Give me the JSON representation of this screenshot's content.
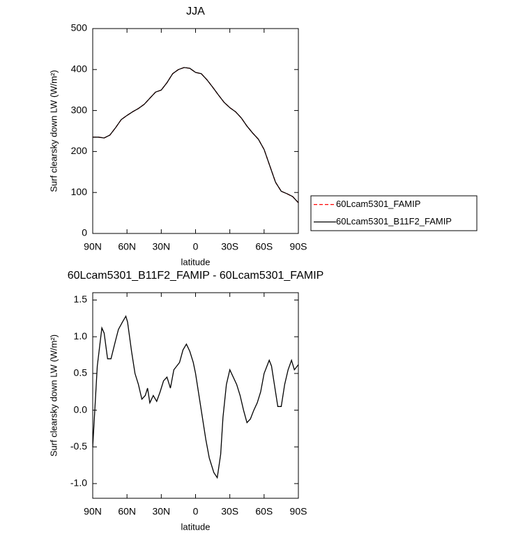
{
  "chart_data": [
    {
      "type": "line",
      "title": "JJA",
      "xlabel": "latitude",
      "ylabel": "Surf clearsky down LW (W/m²)",
      "x": [
        90,
        85,
        80,
        75,
        70,
        65,
        60,
        55,
        50,
        45,
        40,
        35,
        30,
        25,
        20,
        15,
        10,
        5,
        0,
        -5,
        -10,
        -15,
        -20,
        -25,
        -30,
        -35,
        -40,
        -45,
        -50,
        -55,
        -60,
        -65,
        -70,
        -75,
        -80,
        -85,
        -90
      ],
      "series": [
        {
          "name": "60Lcam5301_FAMIP",
          "color": "#ff0000",
          "dash": true,
          "values": [
            235,
            235,
            233,
            240,
            258,
            278,
            288,
            297,
            305,
            315,
            330,
            345,
            350,
            368,
            390,
            400,
            405,
            403,
            393,
            390,
            375,
            357,
            338,
            320,
            307,
            297,
            282,
            262,
            245,
            230,
            205,
            165,
            125,
            103,
            97,
            90,
            75
          ]
        },
        {
          "name": "60Lcam5301_B11F2_FAMIP",
          "color": "#000000",
          "dash": false,
          "values": [
            235,
            235,
            233,
            240,
            258,
            278,
            288,
            297,
            305,
            315,
            330,
            345,
            350,
            368,
            390,
            400,
            405,
            403,
            393,
            390,
            375,
            357,
            338,
            320,
            307,
            297,
            282,
            262,
            245,
            230,
            205,
            165,
            125,
            103,
            97,
            90,
            75
          ]
        }
      ],
      "xlim": [
        90,
        -90
      ],
      "xticks": [
        {
          "value": 90,
          "label": "90N"
        },
        {
          "value": 60,
          "label": "60N"
        },
        {
          "value": 30,
          "label": "30N"
        },
        0,
        {
          "value": -30,
          "label": "30S"
        },
        {
          "value": -60,
          "label": "60S"
        },
        {
          "value": -90,
          "label": "90S"
        }
      ],
      "ylim": [
        0,
        500
      ],
      "yticks": [
        0,
        100,
        200,
        300,
        400,
        500
      ]
    },
    {
      "type": "line",
      "title": "60Lcam5301_B11F2_FAMIP - 60Lcam5301_FAMIP",
      "xlabel": "latitude",
      "ylabel": "Surf clearsky down LW (W/m²)",
      "x": [
        90,
        86,
        82,
        80,
        77,
        74,
        70,
        67.5,
        64,
        61,
        59.5,
        56,
        53,
        50,
        47,
        44,
        42,
        40,
        37,
        34,
        31,
        28,
        25,
        22,
        19,
        14,
        11,
        8,
        5,
        2,
        0,
        -3,
        -6,
        -9,
        -12,
        -16,
        -19,
        -22,
        -24,
        -27,
        -30,
        -33,
        -36,
        -39,
        -42,
        -45,
        -48,
        -51,
        -54,
        -57,
        -60,
        -64.5,
        -66.5,
        -69,
        -72,
        -75,
        -78,
        -81,
        -84,
        -86.5,
        -90
      ],
      "series": [
        {
          "color": "#000000",
          "dash": false,
          "values": [
            -0.5,
            0.6,
            1.12,
            1.05,
            0.7,
            0.7,
            0.95,
            1.1,
            1.2,
            1.28,
            1.2,
            0.8,
            0.5,
            0.35,
            0.15,
            0.2,
            0.3,
            0.1,
            0.2,
            0.12,
            0.25,
            0.4,
            0.45,
            0.3,
            0.55,
            0.65,
            0.82,
            0.9,
            0.8,
            0.65,
            0.5,
            0.2,
            -0.1,
            -0.4,
            -0.65,
            -0.85,
            -0.92,
            -0.6,
            -0.1,
            0.35,
            0.55,
            0.45,
            0.35,
            0.2,
            0.0,
            -0.17,
            -0.12,
            0.0,
            0.1,
            0.25,
            0.5,
            0.68,
            0.6,
            0.35,
            0.05,
            0.05,
            0.35,
            0.55,
            0.68,
            0.55,
            0.62
          ]
        }
      ],
      "xlim": [
        90,
        -90
      ],
      "xticks": [
        {
          "value": 90,
          "label": "90N"
        },
        {
          "value": 60,
          "label": "60N"
        },
        {
          "value": 30,
          "label": "30N"
        },
        0,
        {
          "value": -30,
          "label": "30S"
        },
        {
          "value": -60,
          "label": "60S"
        },
        {
          "value": -90,
          "label": "90S"
        }
      ],
      "ylim": [
        -1.2,
        1.6
      ],
      "yticks": [
        {
          "value": -1.0,
          "label": "-1.0"
        },
        {
          "value": -0.5,
          "label": "-0.5"
        },
        {
          "value": 0.0,
          "label": "0.0"
        },
        0.5,
        {
          "value": 1.0,
          "label": "1.0"
        },
        1.5
      ]
    }
  ]
}
